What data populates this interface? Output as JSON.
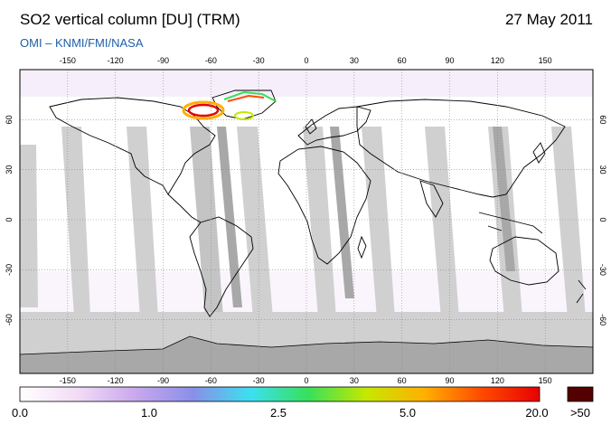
{
  "header": {
    "title": "SO2 vertical column [DU] (TRM)",
    "date": "27 May 2011",
    "subtitle": "OMI  –  KNMI/FMI/NASA"
  },
  "map": {
    "lon_ticks": [
      "-150",
      "-120",
      "-90",
      "-60",
      "-30",
      "0",
      "30",
      "60",
      "90",
      "120",
      "150"
    ],
    "lat_ticks": [
      "60",
      "30",
      "0",
      "-30",
      "-60"
    ],
    "right_lat_ticks": [
      "60",
      "30",
      "0",
      "-30",
      "-60"
    ],
    "colors": {
      "swath_gap": "#d0d0d0",
      "swath_gap_dark": "#a8a8a8",
      "coast": "#000000",
      "grid": "#888888"
    }
  },
  "colorbar": {
    "labels": [
      "0.0",
      "1.0",
      "2.5",
      "5.0",
      "20.0",
      ">50"
    ],
    "stops": [
      "#ffffff",
      "#f2dcf5",
      "#c9a8ee",
      "#8a8fe8",
      "#3ce0f0",
      "#38e05a",
      "#c6e800",
      "#ffb000",
      "#ff4a00",
      "#e80000"
    ],
    "overflow_color": "#550000"
  }
}
